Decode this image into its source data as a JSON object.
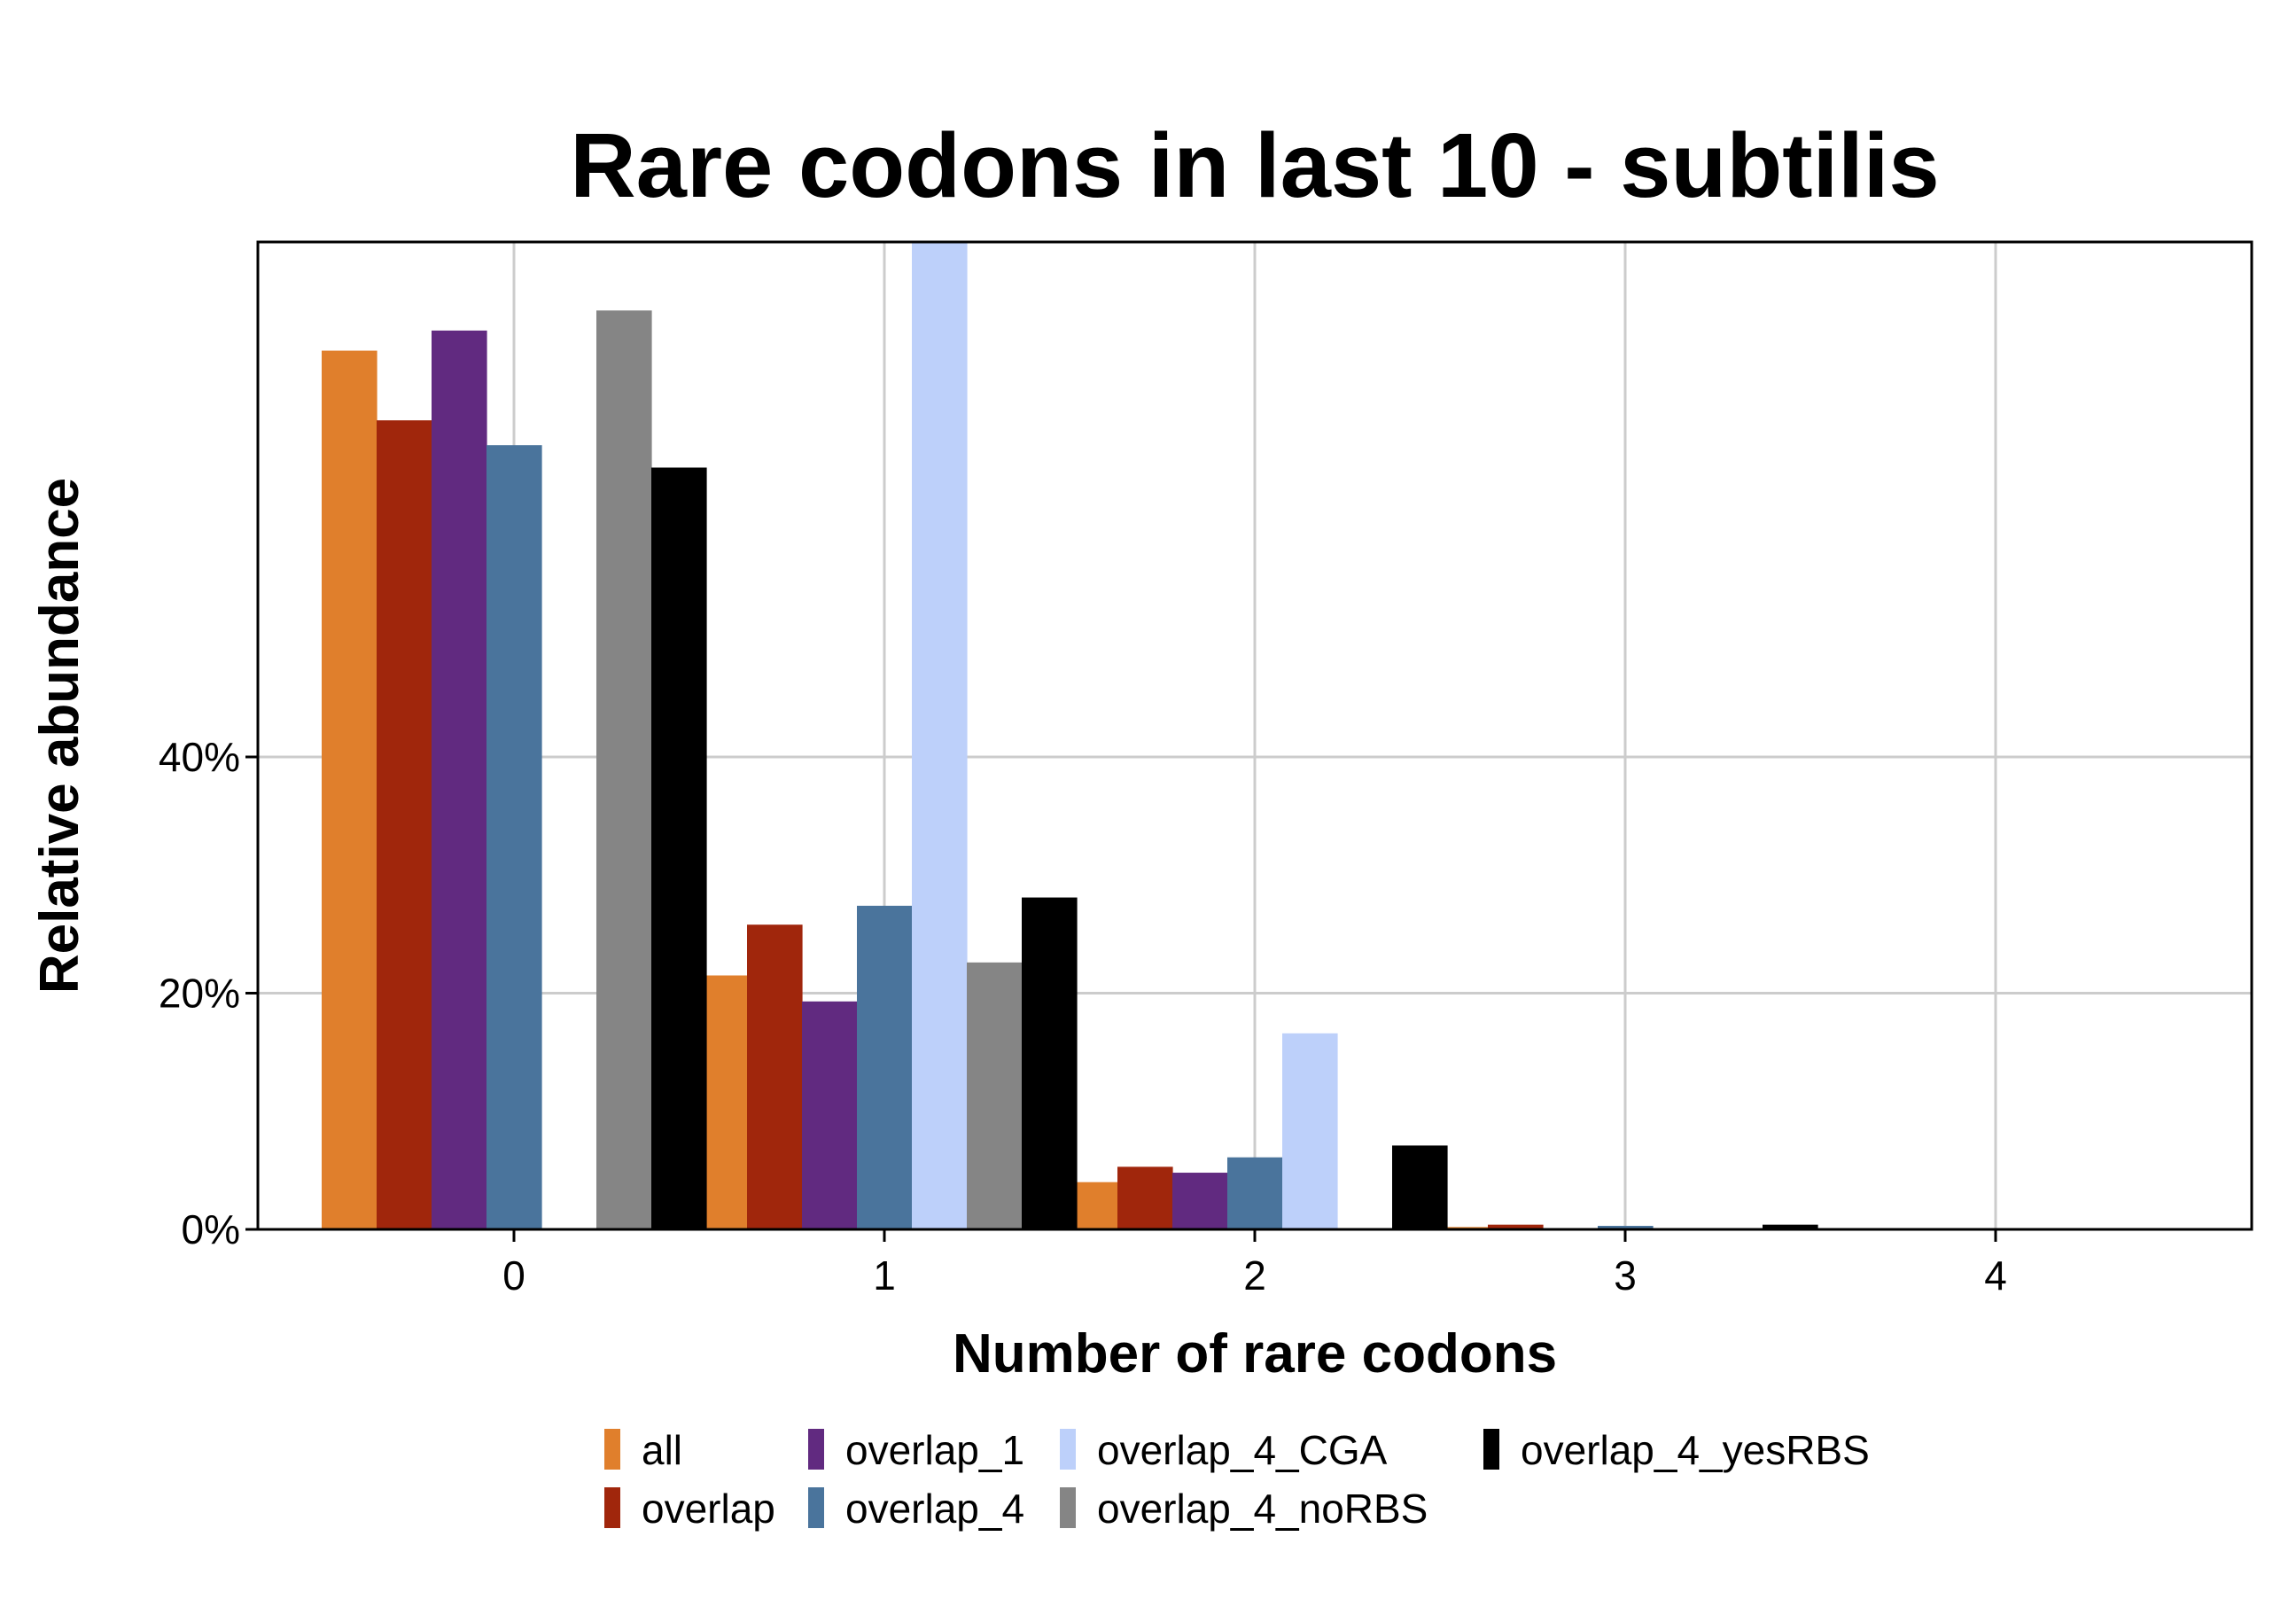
{
  "chart_data": {
    "type": "bar",
    "title": "Rare codons in last 10 - subtilis",
    "xlabel": "Number of rare codons",
    "ylabel": "Relative abundance",
    "categories": [
      "0",
      "1",
      "2",
      "3",
      "4"
    ],
    "yticks": [
      {
        "value": 0,
        "label": "0%"
      },
      {
        "value": 20,
        "label": "20%"
      },
      {
        "value": 40,
        "label": "40%"
      }
    ],
    "ylim": [
      0,
      83.6
    ],
    "y_unit": "%",
    "grid": true,
    "legend_position": "bottom",
    "series": [
      {
        "name": "all",
        "color": "#e07f2c",
        "values": [
          74.4,
          21.5,
          4.0,
          0.2,
          0.0
        ]
      },
      {
        "name": "overlap",
        "color": "#a0260c",
        "values": [
          68.5,
          25.8,
          5.3,
          0.4,
          0.0
        ]
      },
      {
        "name": "overlap_1",
        "color": "#612a80",
        "values": [
          76.1,
          19.3,
          4.8,
          null,
          null
        ]
      },
      {
        "name": "overlap_4",
        "color": "#4a749c",
        "values": [
          66.4,
          27.4,
          6.1,
          0.3,
          0.0
        ]
      },
      {
        "name": "overlap_4_CGA",
        "color": "#bdd0fa",
        "values": [
          null,
          83.6,
          16.6,
          null,
          null
        ]
      },
      {
        "name": "overlap_4_noRBS",
        "color": "#858585",
        "values": [
          77.8,
          22.6,
          null,
          null,
          null
        ]
      },
      {
        "name": "overlap_4_yesRBS",
        "color": "#000000",
        "values": [
          64.5,
          28.1,
          7.1,
          0.4,
          null
        ]
      }
    ]
  }
}
